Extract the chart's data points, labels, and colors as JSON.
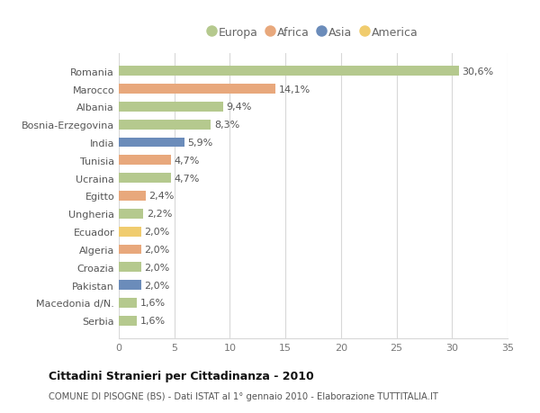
{
  "countries": [
    "Romania",
    "Marocco",
    "Albania",
    "Bosnia-Erzegovina",
    "India",
    "Tunisia",
    "Ucraina",
    "Egitto",
    "Ungheria",
    "Ecuador",
    "Algeria",
    "Croazia",
    "Pakistan",
    "Macedonia d/N.",
    "Serbia"
  ],
  "values": [
    30.6,
    14.1,
    9.4,
    8.3,
    5.9,
    4.7,
    4.7,
    2.4,
    2.2,
    2.0,
    2.0,
    2.0,
    2.0,
    1.6,
    1.6
  ],
  "labels": [
    "30,6%",
    "14,1%",
    "9,4%",
    "8,3%",
    "5,9%",
    "4,7%",
    "4,7%",
    "2,4%",
    "2,2%",
    "2,0%",
    "2,0%",
    "2,0%",
    "2,0%",
    "1,6%",
    "1,6%"
  ],
  "continents": [
    "Europa",
    "Africa",
    "Europa",
    "Europa",
    "Asia",
    "Africa",
    "Europa",
    "Africa",
    "Europa",
    "America",
    "Africa",
    "Europa",
    "Asia",
    "Europa",
    "Europa"
  ],
  "continent_colors": {
    "Europa": "#b5c98e",
    "Africa": "#e8a87c",
    "Asia": "#6b8cba",
    "America": "#f0cc6e"
  },
  "legend_order": [
    "Europa",
    "Africa",
    "Asia",
    "America"
  ],
  "xlim": [
    0,
    35
  ],
  "xticks": [
    0,
    5,
    10,
    15,
    20,
    25,
    30,
    35
  ],
  "title": "Cittadini Stranieri per Cittadinanza - 2010",
  "subtitle": "COMUNE DI PISOGNE (BS) - Dati ISTAT al 1° gennaio 2010 - Elaborazione TUTTITALIA.IT",
  "background_color": "#ffffff",
  "grid_color": "#d8d8d8",
  "bar_height": 0.55,
  "label_fontsize": 8,
  "tick_fontsize": 8
}
